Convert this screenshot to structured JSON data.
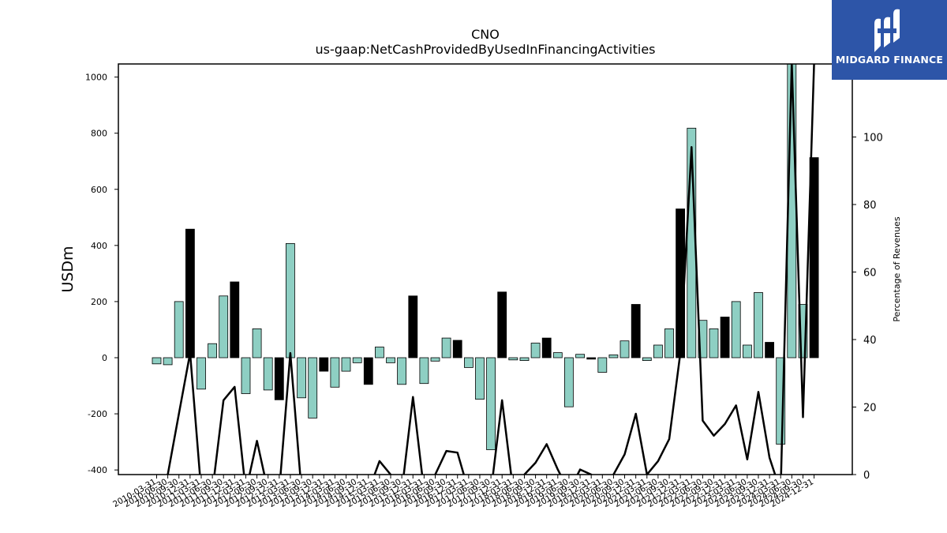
{
  "chart_data": {
    "type": "bar",
    "title": "CNO",
    "subtitle": "us-gaap:NetCashProvidedByUsedInFinancingActivities",
    "ylabel": "USDm",
    "y2label": "Percentage of Revenues",
    "ylim": [
      -415,
      1045
    ],
    "y2lim": [
      0,
      122
    ],
    "yticks": [
      -400,
      -200,
      0,
      200,
      400,
      600,
      800,
      1000
    ],
    "y2ticks": [
      0,
      20,
      40,
      60,
      80,
      100
    ],
    "colors": {
      "quarterly": "#8ecfc3",
      "annual": "#000000",
      "line": "#000000"
    },
    "grid": false,
    "categories": [
      "2010-03-31",
      "2010-06-30",
      "2010-09-30",
      "2010-12-31",
      "2011-03-31",
      "2011-06-30",
      "2011-09-30",
      "2011-12-31",
      "2012-03-31",
      "2012-06-30",
      "2012-09-30",
      "2012-12-31",
      "2013-03-31",
      "2013-06-30",
      "2013-09-30",
      "2013-12-31",
      "2014-03-31",
      "2014-06-30",
      "2014-09-30",
      "2014-12-31",
      "2015-03-31",
      "2015-06-30",
      "2015-09-30",
      "2015-12-31",
      "2016-03-31",
      "2016-06-30",
      "2016-09-30",
      "2016-12-31",
      "2017-03-31",
      "2017-06-30",
      "2017-09-30",
      "2017-12-31",
      "2018-03-31",
      "2018-06-30",
      "2018-09-30",
      "2018-12-31",
      "2019-03-31",
      "2019-06-30",
      "2019-09-30",
      "2019-12-31",
      "2020-03-31",
      "2020-06-30",
      "2020-09-30",
      "2020-12-31",
      "2021-03-31",
      "2021-06-30",
      "2021-09-30",
      "2021-12-31",
      "2022-03-31",
      "2022-06-30",
      "2022-09-30",
      "2022-12-31",
      "2023-03-31",
      "2023-06-30",
      "2023-09-30",
      "2023-12-31",
      "2024-03-31",
      "2024-06-30",
      "2024-09-30",
      "2024-12-31"
    ],
    "xtick_labels": [
      "2010-03-31",
      "2010-06-30",
      "2010-09-30",
      "2010-12-31",
      "2011-03-31",
      "2011-06-30",
      "2011-09-30",
      "2011-12-31",
      "2012-03-31",
      "2012-06-30",
      "2012-09-30",
      "2012-12-31",
      "2013-03-31",
      "2013-06-30",
      "2013-09-30",
      "2013-12-31",
      "2014-03-31",
      "2014-06-30",
      "2014-09-30",
      "2014-12-31",
      "2015-03-31",
      "2015-06-30",
      "2015-09-30",
      "2015-12-31",
      "2016-03-31",
      "2016-06-30",
      "2016-09-30",
      "2016-12-31",
      "2017-03-31",
      "2017-06-30",
      "2017-09-30",
      "2017-12-31",
      "2018-03-31",
      "2018-06-30",
      "2018-09-30",
      "2018-12-31",
      "2019-03-31",
      "2019-06-30",
      "2019-09-30",
      "2019-12-31",
      "2020-03-31",
      "2020-06-30",
      "2020-09-30",
      "2020-12-31",
      "2021-03-31",
      "2021-06-30",
      "2021-09-30",
      "2021-12-31",
      "2022-03-31",
      "2022-06-30",
      "2022-09-30",
      "2022-12-31",
      "2023-03-31",
      "2023-06-30",
      "2023-09-30",
      "2023-12-31",
      "2024-03-31",
      "2024-06-30",
      "2024-09-30",
      "2024-12-31"
    ],
    "series": [
      {
        "values": [
          -22,
          -25,
          200,
          458,
          -112,
          50,
          220,
          270,
          -128,
          103,
          -115,
          -150,
          407,
          -143,
          -215,
          -48,
          -105,
          -48,
          -18,
          -95,
          38,
          -18,
          -95,
          220,
          -92,
          -12,
          70,
          62,
          -35,
          -148,
          -328,
          234,
          -8,
          -10,
          52,
          70,
          18,
          -175,
          12,
          -5,
          -52,
          10,
          60,
          190,
          -10,
          45,
          103,
          530,
          818,
          133,
          103,
          145,
          200,
          45,
          232,
          55,
          -308,
          1050,
          190,
          713
        ],
        "annual": [
          false,
          false,
          false,
          true,
          false,
          false,
          false,
          true,
          false,
          false,
          false,
          true,
          false,
          false,
          false,
          true,
          false,
          false,
          false,
          true,
          false,
          false,
          false,
          true,
          false,
          false,
          false,
          true,
          false,
          false,
          false,
          true,
          false,
          false,
          false,
          true,
          false,
          false,
          false,
          true,
          false,
          false,
          false,
          true,
          false,
          false,
          false,
          true,
          false,
          false,
          false,
          true,
          false,
          false,
          false,
          true,
          false,
          false,
          false,
          true
        ]
      },
      {
        "type": "line",
        "values": [
          -5,
          0,
          18,
          36,
          -5,
          -5,
          22,
          26,
          -5,
          10,
          -5,
          -5,
          36,
          -5,
          -5,
          -5,
          -5,
          -5,
          -5,
          -5,
          4,
          0,
          -5,
          23,
          -5,
          0,
          7,
          6.5,
          -5,
          -5,
          -5,
          22,
          -5,
          0,
          3.5,
          9,
          1.5,
          -5,
          1.5,
          0,
          -5,
          0,
          6,
          18,
          0,
          4,
          10.5,
          36,
          97,
          16,
          11.5,
          15,
          20.5,
          4.5,
          24.5,
          5,
          -5,
          122,
          17,
          122
        ]
      }
    ]
  },
  "logo": {
    "text": "MIDGARD FINANCE",
    "icon": "midgard-logo-icon"
  }
}
